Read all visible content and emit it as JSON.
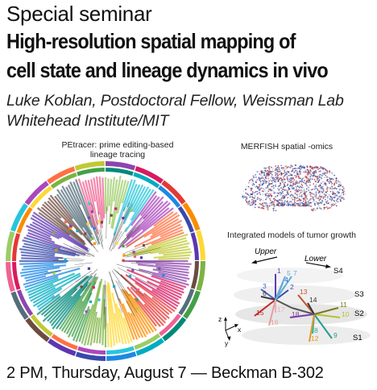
{
  "header": {
    "kicker": "Special seminar",
    "title_line1": "High-resolution spatial mapping of",
    "title_line2": "cell state and lineage dynamics in vivo"
  },
  "speaker": {
    "line1": "Luke Koblan, Postdoctoral Fellow, Weissman Lab",
    "line2": "Whitehead Institute/MIT"
  },
  "figures": {
    "petracer": {
      "caption_line1": "PEtracer: prime editing-based",
      "caption_line2": "lineage tracing"
    },
    "merfish": {
      "caption": "MERFISH spatial -omics"
    },
    "integrated": {
      "caption": "Integrated models of tumor growth",
      "upper_label": "Upper",
      "lower_label": "Lower",
      "layers": [
        "S4",
        "S3",
        "S2",
        "S1"
      ],
      "axes": [
        "z",
        "x",
        "y"
      ],
      "nodes": [
        {
          "label": "1",
          "color": "#5a3fb0"
        },
        {
          "label": "2",
          "color": "#3a4aa8"
        },
        {
          "label": "3",
          "color": "#4a5fc0"
        },
        {
          "label": "4",
          "color": "#2a63c9"
        },
        {
          "label": "5",
          "color": "#6aa9dd"
        },
        {
          "label": "6",
          "color": "#3a3a3a"
        },
        {
          "label": "7",
          "color": "#5ab0d8"
        },
        {
          "label": "8",
          "color": "#2bb0a0"
        },
        {
          "label": "9",
          "color": "#2a9a8a"
        },
        {
          "label": "10",
          "color": "#b7c22a"
        },
        {
          "label": "11",
          "color": "#7a7a20"
        },
        {
          "label": "12",
          "color": "#e09a20"
        },
        {
          "label": "13",
          "color": "#c0542a"
        },
        {
          "label": "14",
          "color": "#333333"
        },
        {
          "label": "15",
          "color": "#c62828"
        },
        {
          "label": "16",
          "color": "#e0a0a0"
        },
        {
          "label": "17",
          "color": "#e8b0c0"
        },
        {
          "label": "18",
          "color": "#7b3fa8"
        }
      ]
    }
  },
  "footer": {
    "text": "2 PM, Thursday, August 7 — Beckman B-302"
  }
}
